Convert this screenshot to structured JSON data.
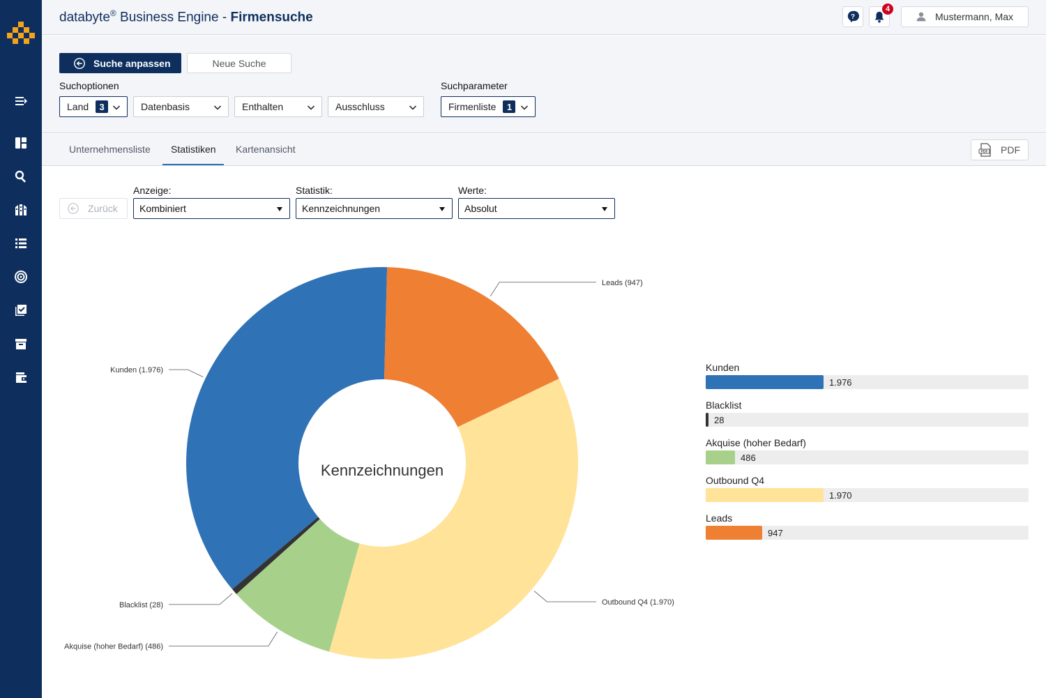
{
  "header": {
    "brand": "databyte",
    "brand_reg": "®",
    "product": " Business Engine",
    "separator": " - ",
    "page": "Firmensuche",
    "notifications_count": "4",
    "user_name": "Mustermann, Max"
  },
  "search": {
    "adjust_button": "Suche anpassen",
    "new_search_button": "Neue Suche",
    "options_label": "Suchoptionen",
    "params_label": "Suchparameter",
    "options": [
      {
        "label": "Land",
        "count": "3"
      },
      {
        "label": "Datenbasis"
      },
      {
        "label": "Enthalten"
      },
      {
        "label": "Ausschluss"
      }
    ],
    "params": [
      {
        "label": "Firmenliste",
        "count": "1"
      }
    ]
  },
  "tabs": [
    {
      "label": "Unternehmensliste",
      "active": false
    },
    {
      "label": "Statistiken",
      "active": true
    },
    {
      "label": "Kartenansicht",
      "active": false
    }
  ],
  "pdf_button": "PDF",
  "controls": {
    "back_button": "Zurück",
    "display_label": "Anzeige:",
    "display_value": "Kombiniert",
    "statistic_label": "Statistik:",
    "statistic_value": "Kennzeichnungen",
    "values_label": "Werte:",
    "values_value": "Absolut"
  },
  "chart_data": {
    "type": "pie",
    "variant": "donut",
    "title": "Kennzeichnungen",
    "categories": [
      "Kunden",
      "Blacklist",
      "Akquise (hoher Bedarf)",
      "Outbound Q4",
      "Leads"
    ],
    "values": [
      1976,
      28,
      486,
      1970,
      947
    ],
    "value_labels": [
      "1.976",
      "28",
      "486",
      "1.970",
      "947"
    ],
    "slice_labels": [
      "Kunden (1.976)",
      "Blacklist (28)",
      "Akquise (hoher Bedarf) (486)",
      "Outbound Q4 (1.970)",
      "Leads (947)"
    ],
    "colors": [
      "#2f72b5",
      "#333333",
      "#a7d18b",
      "#ffe399",
      "#ee7f33"
    ]
  }
}
